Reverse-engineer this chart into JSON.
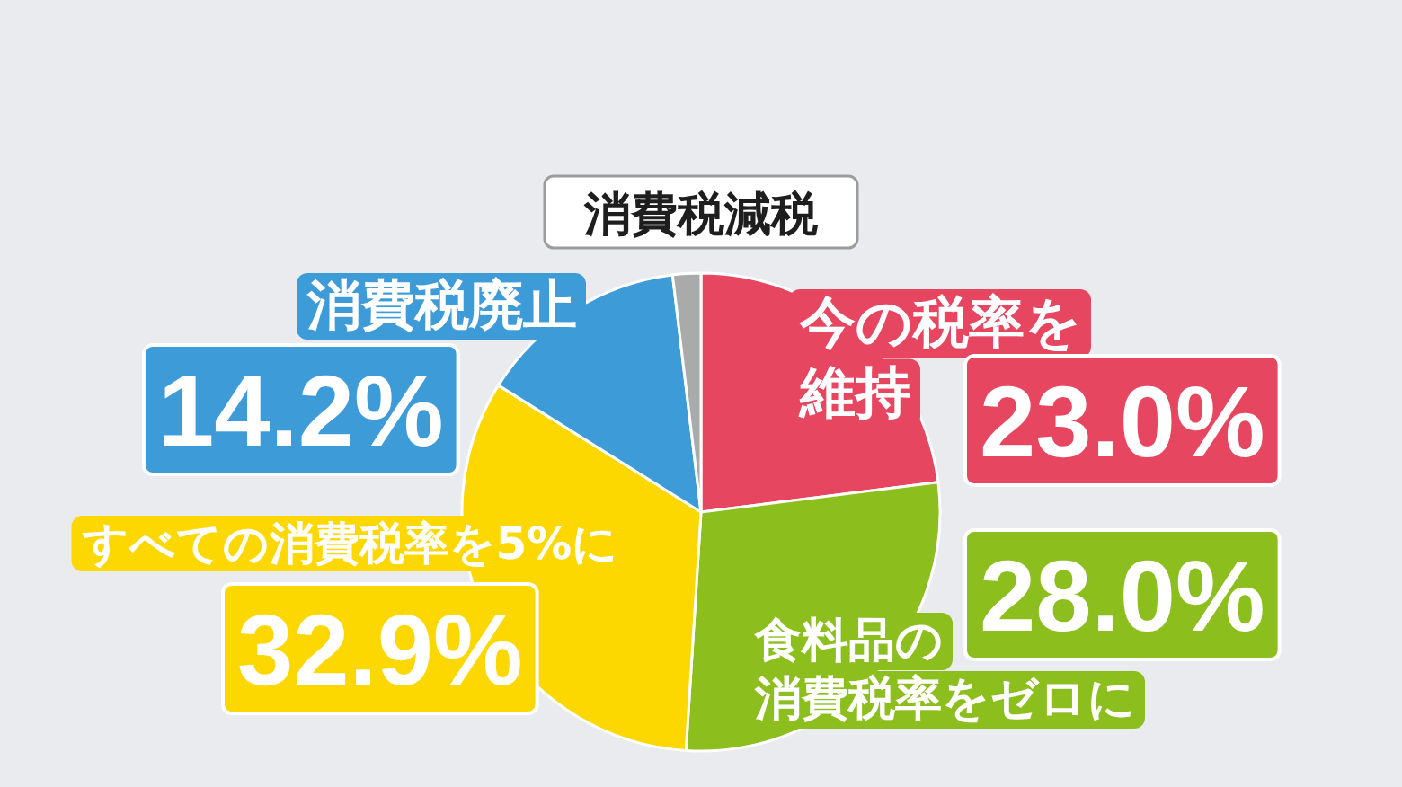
{
  "chart_data": {
    "type": "pie",
    "title": "消費税減税",
    "categories": [
      "今の税率を維持",
      "食料品の消費税率をゼロに",
      "すべての消費税率を5%に",
      "消費税廃止",
      null
    ],
    "values": [
      23.0,
      28.0,
      32.9,
      14.2,
      1.9
    ],
    "colors": [
      "#e6465f",
      "#8cbe1e",
      "#fcd700",
      "#3d9bd8",
      "#aaaaaa"
    ],
    "value_labels": [
      "23.0%",
      "28.0%",
      "32.9%",
      "14.2%",
      null
    ]
  }
}
